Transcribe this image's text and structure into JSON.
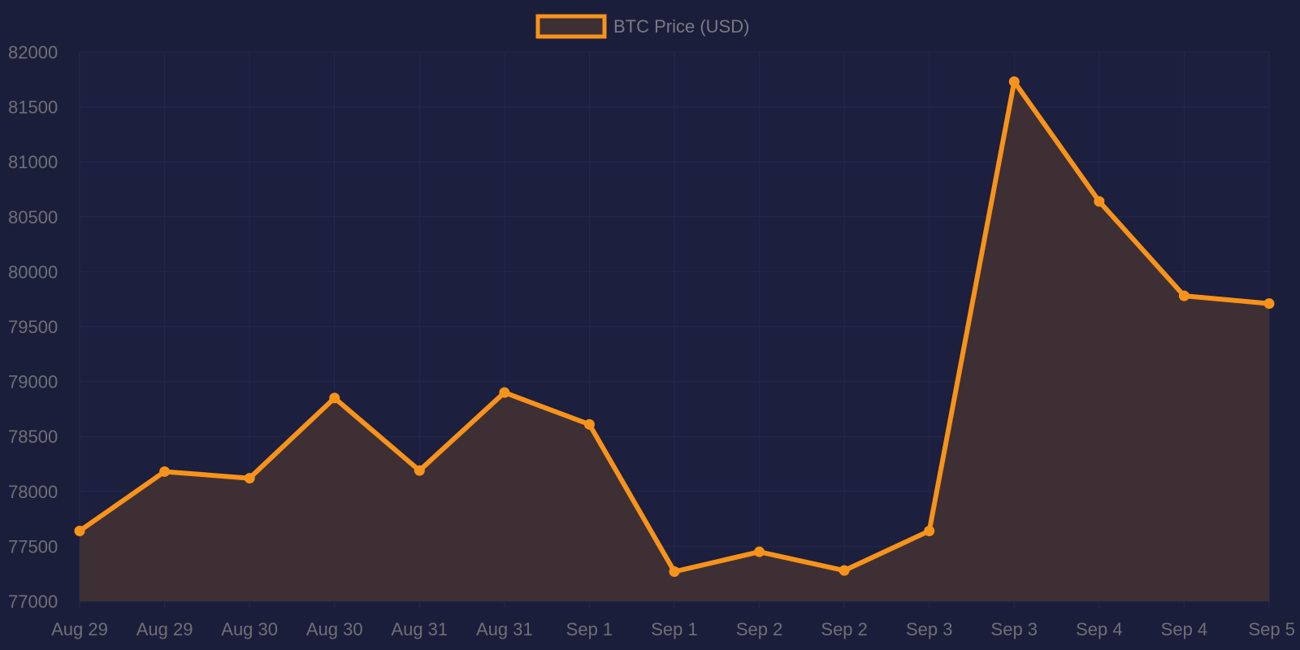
{
  "chart_data": {
    "type": "area",
    "title": "",
    "xlabel": "",
    "ylabel": "",
    "categories": [
      "Aug 29",
      "Aug 29",
      "Aug 30",
      "Aug 30",
      "Aug 31",
      "Aug 31",
      "Sep 1",
      "Sep 1",
      "Sep 2",
      "Sep 2",
      "Sep 3",
      "Sep 3",
      "Sep 4",
      "Sep 4",
      "Sep 5"
    ],
    "series": [
      {
        "name": "BTC Price (USD)",
        "values": [
          77640,
          78180,
          78120,
          78850,
          78190,
          78900,
          78610,
          77270,
          77450,
          77280,
          77640,
          81730,
          80640,
          79780,
          79710
        ]
      }
    ],
    "yticks": [
      "77000",
      "77500",
      "78000",
      "78500",
      "79000",
      "79500",
      "80000",
      "80500",
      "81000",
      "81500",
      "82000"
    ],
    "ylim": [
      77000,
      82000
    ],
    "grid": true,
    "legend_position": "top-center",
    "colors": {
      "line": "#f7931a",
      "fill": "#3e2f35",
      "background": "#1b1e3b",
      "grid": "#24284a",
      "tick_text": "#6f6f76"
    }
  }
}
